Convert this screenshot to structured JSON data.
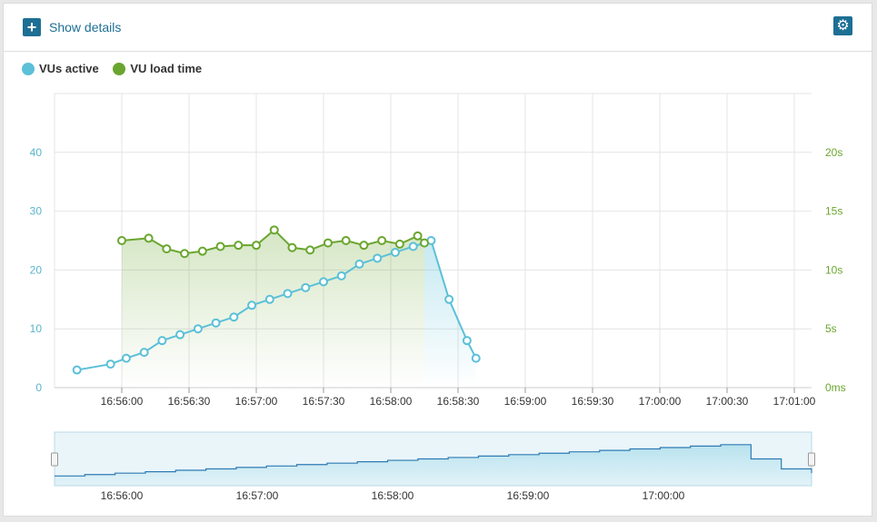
{
  "toolbar": {
    "show_details_label": "Show details",
    "plus_icon": "plus-icon",
    "gear_icon": "gear-icon"
  },
  "colors": {
    "vus": "#5bc0d8",
    "load": "#6aa62f",
    "accent": "#1d6f94"
  },
  "chart_data": {
    "type": "line",
    "legend": [
      "VUs active",
      "VU load time"
    ],
    "x_ticks": [
      "16:56:00",
      "16:56:30",
      "16:57:00",
      "16:57:30",
      "16:58:00",
      "16:58:30",
      "16:59:00",
      "16:59:30",
      "17:00:00",
      "17:00:30",
      "17:01:00"
    ],
    "y_left_ticks": [
      "0",
      "10",
      "20",
      "30",
      "40"
    ],
    "y_right_ticks": [
      "0ms",
      "5s",
      "10s",
      "15s",
      "20s"
    ],
    "y_left_range": [
      0,
      50
    ],
    "y_right_range": [
      0,
      25
    ],
    "series": [
      {
        "name": "VUs active",
        "axis": "left",
        "area": "right-end only",
        "points": [
          [
            "16:55:40",
            3
          ],
          [
            "16:55:55",
            4
          ],
          [
            "16:56:02",
            5
          ],
          [
            "16:56:10",
            6
          ],
          [
            "16:56:18",
            8
          ],
          [
            "16:56:26",
            9
          ],
          [
            "16:56:34",
            10
          ],
          [
            "16:56:42",
            11
          ],
          [
            "16:56:50",
            12
          ],
          [
            "16:56:58",
            14
          ],
          [
            "16:57:06",
            15
          ],
          [
            "16:57:14",
            16
          ],
          [
            "16:57:22",
            17
          ],
          [
            "16:57:30",
            18
          ],
          [
            "16:57:38",
            19
          ],
          [
            "16:57:46",
            21
          ],
          [
            "16:57:54",
            22
          ],
          [
            "16:58:02",
            23
          ],
          [
            "16:58:10",
            24
          ],
          [
            "16:58:18",
            25
          ],
          [
            "16:58:26",
            15
          ],
          [
            "16:58:34",
            8
          ],
          [
            "16:58:38",
            5
          ]
        ]
      },
      {
        "name": "VU load time",
        "axis": "right",
        "points": [
          [
            "16:56:00",
            12.5
          ],
          [
            "16:56:12",
            12.7
          ],
          [
            "16:56:20",
            11.8
          ],
          [
            "16:56:28",
            11.4
          ],
          [
            "16:56:36",
            11.6
          ],
          [
            "16:56:44",
            12.0
          ],
          [
            "16:56:52",
            12.1
          ],
          [
            "16:57:00",
            12.1
          ],
          [
            "16:57:08",
            13.4
          ],
          [
            "16:57:16",
            11.9
          ],
          [
            "16:57:24",
            11.7
          ],
          [
            "16:57:32",
            12.3
          ],
          [
            "16:57:40",
            12.5
          ],
          [
            "16:57:48",
            12.1
          ],
          [
            "16:57:56",
            12.5
          ],
          [
            "16:58:04",
            12.2
          ],
          [
            "16:58:12",
            12.9
          ],
          [
            "16:58:15",
            12.3
          ]
        ]
      }
    ],
    "navigator": {
      "x_ticks": [
        "16:56:00",
        "16:57:00",
        "16:58:00",
        "16:59:00",
        "17:00:00"
      ],
      "values": [
        3,
        4,
        5,
        6,
        7,
        8,
        9,
        10,
        11,
        12,
        13,
        14,
        15,
        16,
        17,
        18,
        19,
        20,
        21,
        22,
        23,
        24,
        25,
        15,
        8,
        5
      ]
    },
    "grid": true
  }
}
